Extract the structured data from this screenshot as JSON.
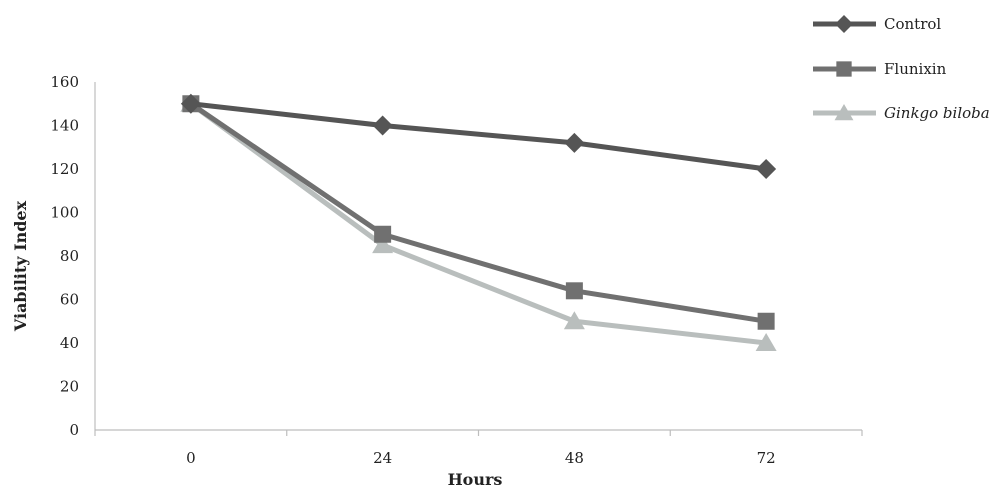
{
  "chart_data": {
    "type": "line",
    "title": "",
    "xlabel": "Hours",
    "ylabel": "Viability Index",
    "categories": [
      "0",
      "24",
      "48",
      "72"
    ],
    "ylim": [
      0,
      160
    ],
    "yticks": [
      "0",
      "20",
      "40",
      "60",
      "80",
      "100",
      "120",
      "140",
      "160"
    ],
    "grid": false,
    "legend_position": "top-right",
    "series": [
      {
        "name": "Control",
        "values": [
          150,
          140,
          132,
          120
        ],
        "marker": "diamond",
        "color": "#555555",
        "italic": false
      },
      {
        "name": "Flunixin",
        "values": [
          150,
          90,
          64,
          50
        ],
        "marker": "square",
        "color": "#707070",
        "italic": false
      },
      {
        "name": "Ginkgo biloba",
        "values": [
          150,
          85,
          50,
          40
        ],
        "marker": "triangle",
        "color": "#b9bebd",
        "italic": true
      }
    ]
  }
}
